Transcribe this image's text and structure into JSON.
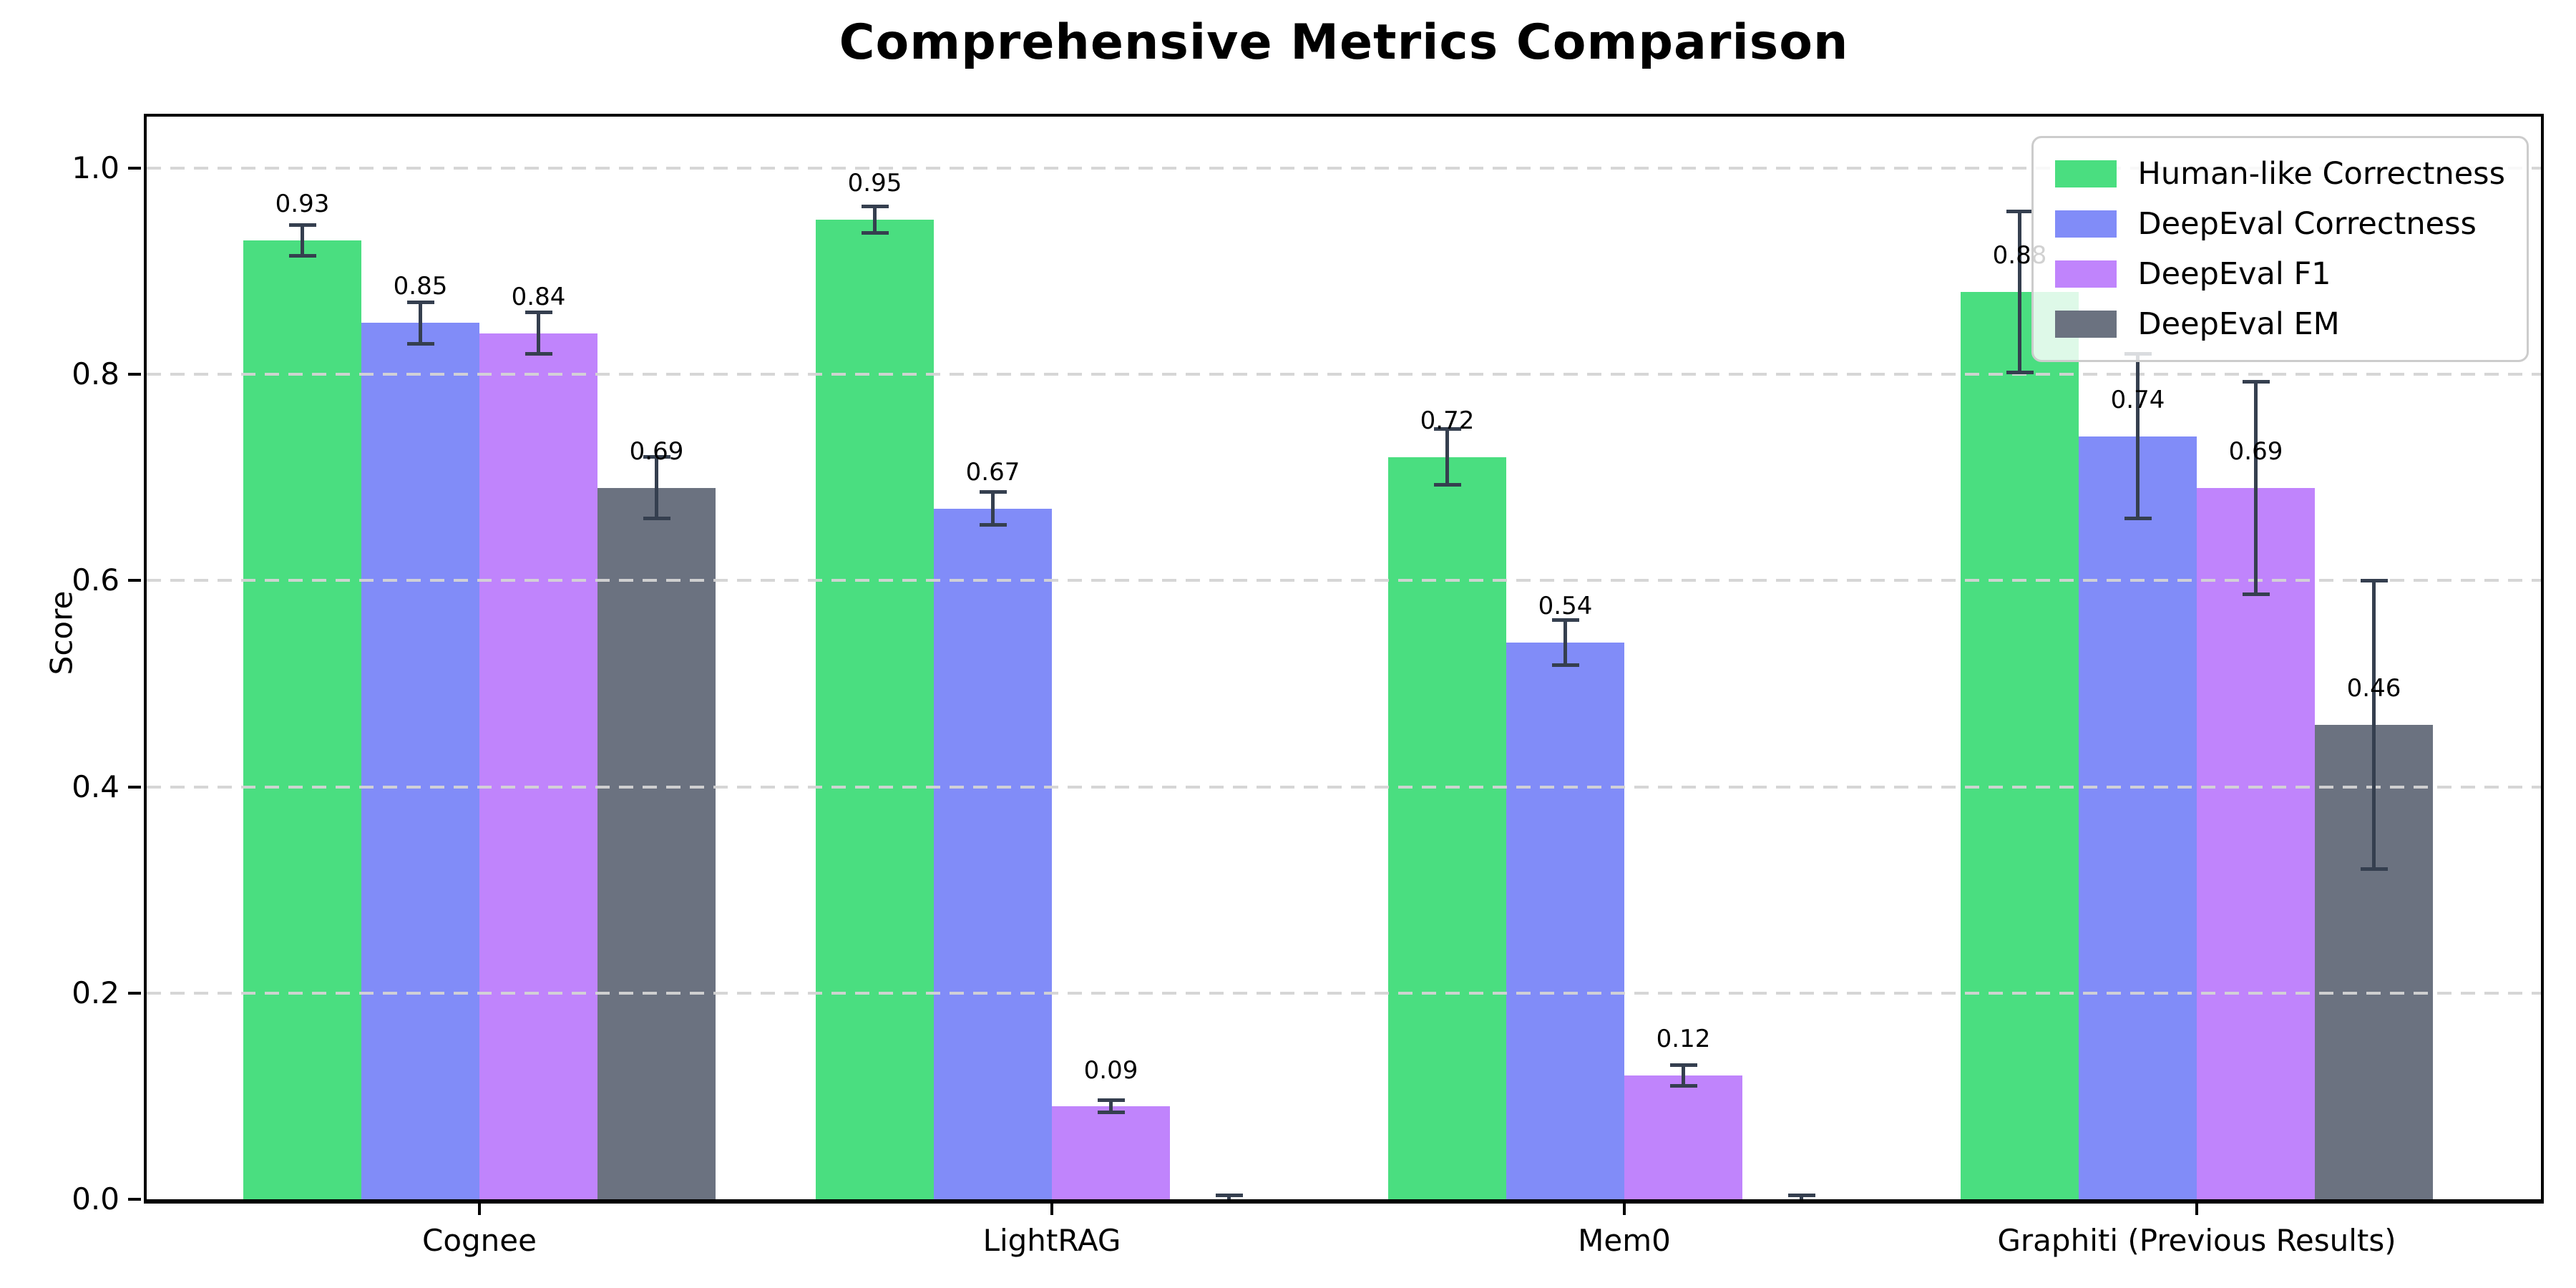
{
  "figure": {
    "title": "Comprehensive Metrics Comparison",
    "ylabel": "Score"
  },
  "chart_data": {
    "type": "bar",
    "title": "Comprehensive Metrics Comparison",
    "xlabel": "",
    "ylabel": "Score",
    "categories": [
      "Cognee",
      "LightRAG",
      "Mem0",
      "Graphiti (Previous Results)"
    ],
    "series": [
      {
        "name": "Human-like Correctness",
        "color": "#4ade80",
        "values": [
          0.93,
          0.95,
          0.72,
          0.88
        ],
        "errors": [
          0.015,
          0.013,
          0.027,
          0.078
        ]
      },
      {
        "name": "DeepEval Correctness",
        "color": "#818cf8",
        "values": [
          0.85,
          0.67,
          0.54,
          0.74
        ],
        "errors": [
          0.02,
          0.016,
          0.022,
          0.08
        ]
      },
      {
        "name": "DeepEval F1",
        "color": "#c084fc",
        "values": [
          0.84,
          0.09,
          0.12,
          0.69
        ],
        "errors": [
          0.02,
          0.006,
          0.01,
          0.103
        ]
      },
      {
        "name": "DeepEval EM",
        "color": "#6b7280",
        "values": [
          0.69,
          0.0,
          0.0,
          0.46
        ],
        "errors": [
          0.03,
          0.004,
          0.004,
          0.14
        ]
      }
    ],
    "bar_value_labels": [
      "0.93",
      "0.95",
      "0.72",
      "0.88",
      "0.85",
      "0.67",
      "0.54",
      "0.74",
      "0.84",
      "0.09",
      "0.12",
      "0.69",
      "0.69",
      "0.46"
    ],
    "value_label_format": "2 decimals, hidden for zero-height bars",
    "yticks": [
      "0.0",
      "0.2",
      "0.4",
      "0.6",
      "0.8",
      "1.0"
    ],
    "ylim": [
      0,
      1.05
    ],
    "grid": {
      "axis": "y",
      "style": "dashed",
      "color": "#d4d4d4",
      "drawn_above_bars": true
    },
    "error_bar_color": "#353f4f",
    "legend": {
      "position": "upper right",
      "labels": [
        "Human-like Correctness",
        "DeepEval Correctness",
        "DeepEval F1",
        "DeepEval EM"
      ]
    }
  }
}
